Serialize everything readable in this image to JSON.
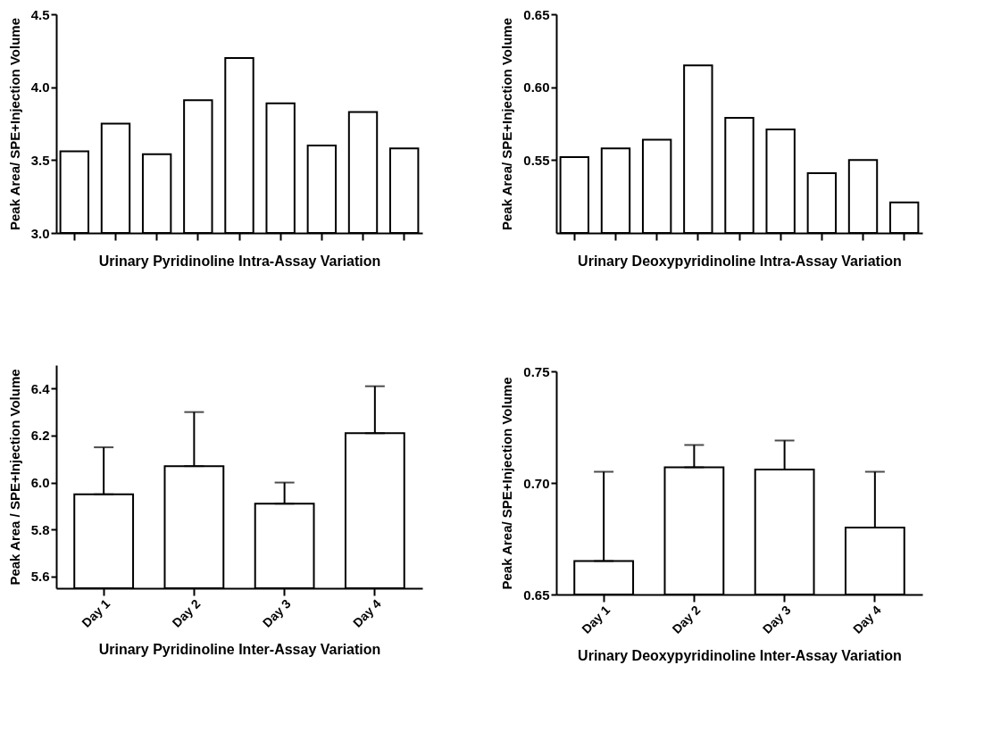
{
  "chart_data": [
    {
      "type": "bar",
      "xlabel": "Urinary Pyridinoline Intra-Assay Variation",
      "ylabel": "Peak Area/ SPE+Injection Volume",
      "categories": [
        null,
        null,
        null,
        null,
        null,
        null,
        null,
        null,
        null
      ],
      "values": [
        3.56,
        3.75,
        3.54,
        3.91,
        4.2,
        3.89,
        3.6,
        3.83,
        3.58
      ],
      "color": "#ffffff",
      "ylim": [
        3.0,
        4.5
      ],
      "yticks": [
        {
          "value": 3,
          "label": "3.0"
        },
        3.5,
        {
          "value": 4,
          "label": "4.0"
        },
        4.5
      ],
      "grid": false
    },
    {
      "type": "bar",
      "xlabel": "Urinary Deoxypyridinoline Intra-Assay Variation",
      "ylabel": "Peak Area/ SPE+Injection Volume",
      "categories": [
        null,
        null,
        null,
        null,
        null,
        null,
        null,
        null,
        null
      ],
      "values": [
        0.552,
        0.558,
        0.564,
        0.615,
        0.579,
        0.571,
        0.541,
        0.55,
        0.521
      ],
      "color": "#ffffff",
      "ylim": [
        0.5,
        0.65
      ],
      "yticks": [
        0.55,
        {
          "value": 0.6,
          "label": "0.60"
        },
        0.65
      ],
      "grid": false
    },
    {
      "type": "bar",
      "xlabel": "Urinary Pyridinoline Inter-Assay Variation",
      "ylabel": "Peak Area / SPE+Injection Volume",
      "categories": [
        "Day 1",
        "Day 2",
        "Day 3",
        "Day 4"
      ],
      "values": [
        5.95,
        6.07,
        5.91,
        6.21
      ],
      "errors": [
        [
          5.95,
          6.15
        ],
        [
          6.07,
          6.3
        ],
        [
          5.91,
          6.0
        ],
        [
          6.21,
          6.41
        ]
      ],
      "color": "#ffffff",
      "ylim": [
        5.55,
        6.5
      ],
      "yticks": [
        5.6,
        5.8,
        {
          "value": 6,
          "label": "6.0"
        },
        6.2,
        6.4
      ],
      "grid": false
    },
    {
      "type": "bar",
      "xlabel": "Urinary Deoxypyridinoline Inter-Assay Variation",
      "ylabel": "Peak Area/ SPE+Injection Volume",
      "categories": [
        "Day 1",
        "Day 2",
        "Day 3",
        "Day 4"
      ],
      "values": [
        0.665,
        0.707,
        0.706,
        0.68
      ],
      "errors": [
        [
          0.665,
          0.705
        ],
        [
          0.707,
          0.717
        ],
        [
          0.706,
          0.719
        ],
        [
          0.68,
          0.705
        ]
      ],
      "color": "#ffffff",
      "ylim": [
        0.65,
        0.75
      ],
      "yticks": [
        0.65,
        {
          "value": 0.7,
          "label": "0.70"
        },
        0.75
      ],
      "grid": false
    }
  ]
}
